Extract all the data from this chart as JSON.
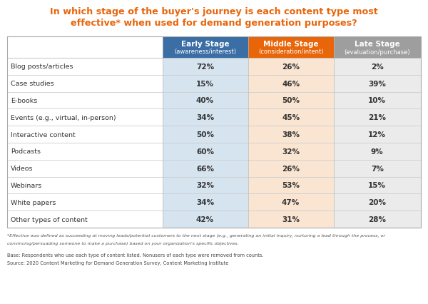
{
  "title_line1": "In which stage of the buyer's journey is each content type most",
  "title_line2": "effective* when used for demand generation purposes?",
  "title_color": "#E8650A",
  "col_headers": [
    [
      "Early Stage",
      "(awareness/interest)"
    ],
    [
      "Middle Stage",
      "(consideration/intent)"
    ],
    [
      "Late Stage",
      "(evaluation/purchase)"
    ]
  ],
  "col_header_bg": [
    "#3A6EA5",
    "#E8650A",
    "#9E9E9E"
  ],
  "col_header_text_color": "#FFFFFF",
  "rows": [
    [
      "Blog posts/articles",
      "72%",
      "26%",
      "2%"
    ],
    [
      "Case studies",
      "15%",
      "46%",
      "39%"
    ],
    [
      "E-books",
      "40%",
      "50%",
      "10%"
    ],
    [
      "Events (e.g., virtual, in-person)",
      "34%",
      "45%",
      "21%"
    ],
    [
      "Interactive content",
      "50%",
      "38%",
      "12%"
    ],
    [
      "Podcasts",
      "60%",
      "32%",
      "9%"
    ],
    [
      "Videos",
      "66%",
      "26%",
      "7%"
    ],
    [
      "Webinars",
      "32%",
      "53%",
      "15%"
    ],
    [
      "White papers",
      "34%",
      "47%",
      "20%"
    ],
    [
      "Other types of content",
      "42%",
      "31%",
      "28%"
    ]
  ],
  "early_col_bg": "#D6E4F0",
  "middle_col_bg": "#FAE5D3",
  "late_col_bg": "#EBEBEB",
  "row_label_color": "#333333",
  "data_color": "#333333",
  "row_divider_color": "#CCCCCC",
  "footnote_italic1": "*Effective was defined as succeeding at moving leads/potential customers to the next stage (e.g., generating an initial inquiry, nurturing a lead through the process, or",
  "footnote_italic2": "convincing/persuading someone to make a purchase) based on your organization's specific objectives.",
  "footnote_normal1": "Base: Respondents who use each type of content listed. Nonusers of each type were removed from counts.",
  "footnote_normal2": "Source: 2020 Content Marketing for Demand Generation Survey, Content Marketing Institute",
  "bg_color": "#FFFFFF"
}
